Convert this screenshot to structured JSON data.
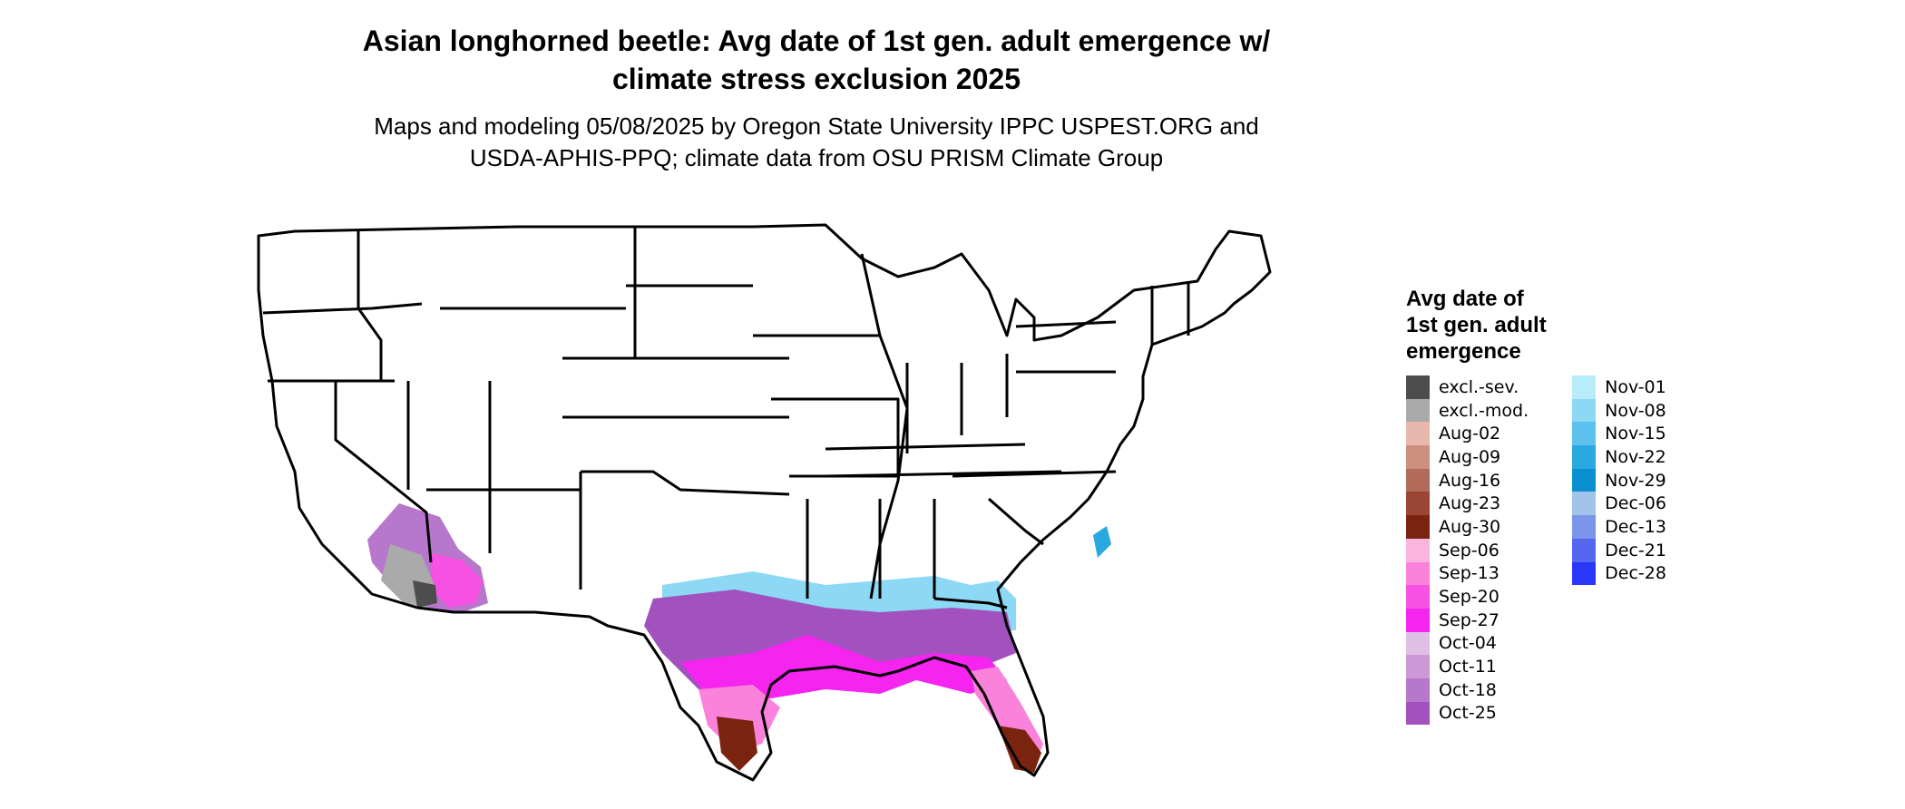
{
  "header": {
    "title_line1": "Asian longhorned beetle: Avg date of 1st gen. adult emergence w/",
    "title_line2": "climate stress exclusion 2025",
    "subtitle_line1": "Maps and modeling 05/08/2025 by Oregon State University IPPC USPEST.ORG and",
    "subtitle_line2": "USDA-APHIS-PPQ; climate data from OSU PRISM Climate Group"
  },
  "map": {
    "region": "Contiguous United States",
    "boundary_color": "#000000",
    "background_color": "#ffffff"
  },
  "legend": {
    "title_line1": "Avg date of",
    "title_line2": "1st gen. adult",
    "title_line3": "emergence",
    "columns": [
      [
        {
          "label": "excl.-sev.",
          "color": "#4d4d4d"
        },
        {
          "label": "excl.-mod.",
          "color": "#aaaaaa"
        },
        {
          "label": "Aug-02",
          "color": "#e8b8ac"
        },
        {
          "label": "Aug-09",
          "color": "#cd8f80"
        },
        {
          "label": "Aug-16",
          "color": "#b26a5a"
        },
        {
          "label": "Aug-23",
          "color": "#9b4634"
        },
        {
          "label": "Aug-30",
          "color": "#7a2410"
        },
        {
          "label": "Sep-06",
          "color": "#fbb4de"
        },
        {
          "label": "Sep-13",
          "color": "#fa82da"
        },
        {
          "label": "Sep-20",
          "color": "#f852e4"
        },
        {
          "label": "Sep-27",
          "color": "#f524ee"
        },
        {
          "label": "Oct-04",
          "color": "#e0bfe6"
        },
        {
          "label": "Oct-11",
          "color": "#cc99d6"
        },
        {
          "label": "Oct-18",
          "color": "#b677cc"
        },
        {
          "label": "Oct-25",
          "color": "#a252be"
        }
      ],
      [
        {
          "label": "Nov-01",
          "color": "#b8ecfb"
        },
        {
          "label": "Nov-08",
          "color": "#8dd8f4"
        },
        {
          "label": "Nov-15",
          "color": "#5cc1ec"
        },
        {
          "label": "Nov-22",
          "color": "#2aa8e0"
        },
        {
          "label": "Nov-29",
          "color": "#0a8fd0"
        },
        {
          "label": "Dec-06",
          "color": "#a4c3ea"
        },
        {
          "label": "Dec-13",
          "color": "#7c94ea"
        },
        {
          "label": "Dec-21",
          "color": "#5566f0"
        },
        {
          "label": "Dec-28",
          "color": "#2a36f8"
        }
      ]
    ]
  }
}
